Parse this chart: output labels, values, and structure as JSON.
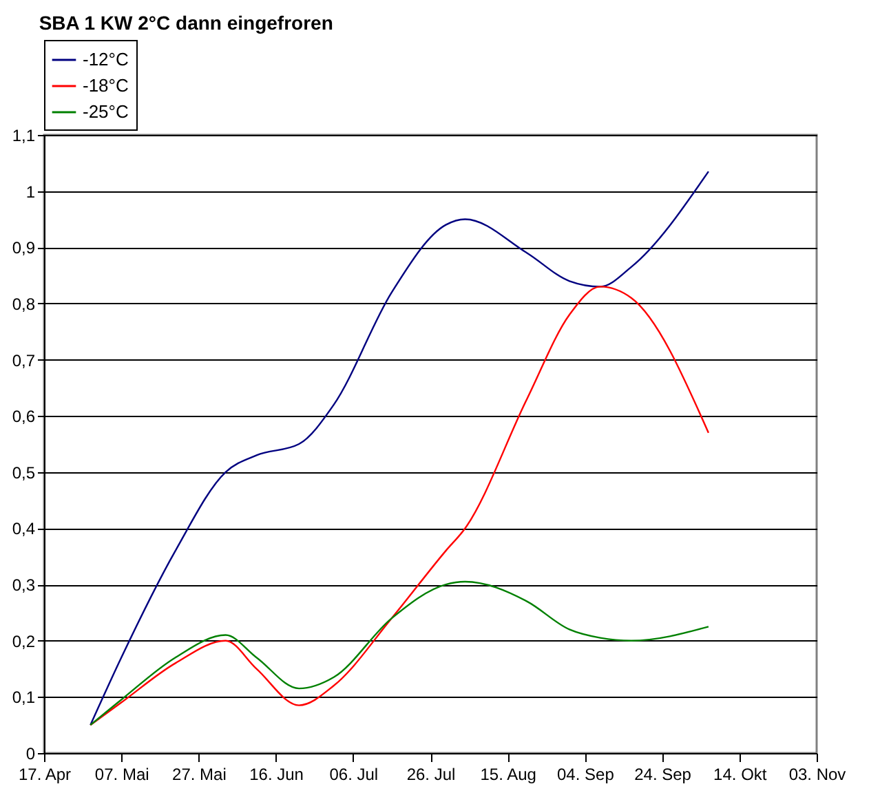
{
  "chart_data": {
    "type": "line",
    "title": "SBA 1 KW 2°C dann eingefroren",
    "x": [
      "--04-29",
      "--05-07",
      "--05-21",
      "--06-03",
      "--06-11",
      "--06-22",
      "--07-01",
      "--07-16",
      "--07-30",
      "--08-04",
      "--08-20",
      "--08-31",
      "--09-08",
      "--09-16",
      "--10-06"
    ],
    "series": [
      {
        "name": "-12°C",
        "color": "#000080",
        "values": [
          0.05,
          0.17,
          0.36,
          0.5,
          0.53,
          0.55,
          0.62,
          0.82,
          0.94,
          0.95,
          0.89,
          0.84,
          0.83,
          0.865,
          1.035
        ]
      },
      {
        "name": "-18°C",
        "color": "#ff0000",
        "values": [
          0.05,
          0.09,
          0.16,
          0.2,
          0.15,
          0.085,
          0.12,
          0.24,
          0.36,
          0.4,
          0.63,
          0.78,
          0.83,
          0.81,
          0.57
        ]
      },
      {
        "name": "-25°C",
        "color": "#008000",
        "values": [
          0.05,
          0.095,
          0.17,
          0.21,
          0.17,
          0.115,
          0.135,
          0.24,
          0.3,
          0.305,
          0.27,
          0.22,
          0.205,
          0.2,
          0.225
        ]
      }
    ],
    "xlim": [
      "--04-17",
      "--11-03"
    ],
    "xticks": [
      {
        "value": "--04-17",
        "label": "17. Apr"
      },
      {
        "value": "--05-07",
        "label": "07. Mai"
      },
      {
        "value": "--05-27",
        "label": "27. Mai"
      },
      {
        "value": "--06-16",
        "label": "16. Jun"
      },
      {
        "value": "--07-06",
        "label": "06. Jul"
      },
      {
        "value": "--07-26",
        "label": "26. Jul"
      },
      {
        "value": "--08-15",
        "label": "15. Aug"
      },
      {
        "value": "--09-04",
        "label": "04. Sep"
      },
      {
        "value": "--09-24",
        "label": "24. Sep"
      },
      {
        "value": "--10-14",
        "label": "14. Okt"
      },
      {
        "value": "--11-03",
        "label": "03. Nov"
      }
    ],
    "ylim": [
      0,
      1.1
    ],
    "yticks": [
      0,
      {
        "value": 0.1,
        "label": "0,1"
      },
      {
        "value": 0.2,
        "label": "0,2"
      },
      {
        "value": 0.3,
        "label": "0,3"
      },
      {
        "value": 0.4,
        "label": "0,4"
      },
      {
        "value": 0.5,
        "label": "0,5"
      },
      {
        "value": 0.6,
        "label": "0,6"
      },
      {
        "value": 0.7,
        "label": "0,7"
      },
      {
        "value": 0.8,
        "label": "0,8"
      },
      {
        "value": 0.9,
        "label": "0,9"
      },
      1,
      {
        "value": 1.1,
        "label": "1,1"
      }
    ],
    "grid": "y",
    "legend": "top",
    "marker": "none"
  }
}
